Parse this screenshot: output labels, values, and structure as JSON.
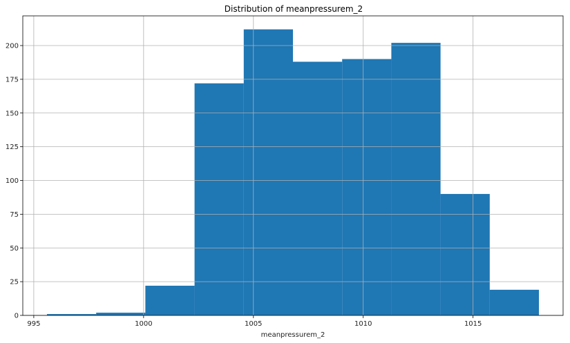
{
  "chart_data": {
    "type": "bar",
    "title": "Distribution of meanpressurem_2",
    "xlabel": "meanpressurem_2",
    "ylabel": "",
    "bin_edges": [
      995.6,
      997.84,
      1000.08,
      1002.32,
      1004.56,
      1006.8,
      1009.04,
      1011.28,
      1013.52,
      1015.76,
      1018.0
    ],
    "values": [
      1,
      2,
      22,
      172,
      212,
      188,
      190,
      202,
      90,
      19
    ],
    "xlim": [
      994.5,
      1019.1
    ],
    "ylim": [
      0,
      222
    ],
    "xticks": [
      995,
      1000,
      1005,
      1010,
      1015
    ],
    "yticks": [
      0,
      25,
      50,
      75,
      100,
      125,
      150,
      175,
      200
    ],
    "grid": true,
    "legend": "none",
    "colors": {
      "bar": "#1f77b4",
      "grid": "#b0b0b0",
      "axes": "#000000"
    }
  }
}
